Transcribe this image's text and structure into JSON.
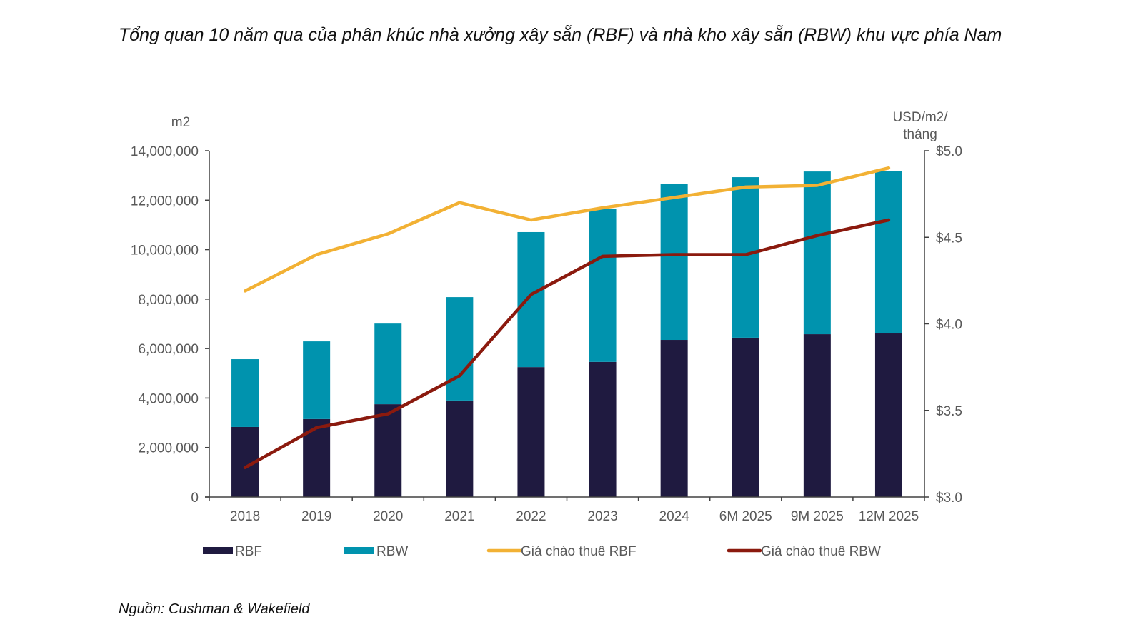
{
  "title": "Tổng quan 10 năm qua của phân khúc nhà xưởng xây sẵn (RBF) và nhà kho xây sẵn (RBW) khu vực phía Nam",
  "source": "Nguồn: Cushman & Wakefield",
  "colors": {
    "rbf": "#1f1a40",
    "rbw": "#0093ae",
    "rbf_price": "#f2b134",
    "rbw_price": "#8b1a0e",
    "axis": "#404040",
    "tick_text": "#595959"
  },
  "chart_data": {
    "type": "bar",
    "subtype": "stacked-bar-with-lines-dual-axis",
    "title": "Tổng quan 10 năm qua của phân khúc nhà xưởng xây sẵn (RBF) và nhà kho xây sẵn (RBW) khu vực phía Nam",
    "categories": [
      "2018",
      "2019",
      "2020",
      "2021",
      "2022",
      "2023",
      "2024",
      "6M 2025",
      "9M 2025",
      "12M 2025"
    ],
    "y_left": {
      "label": "m2",
      "range": [
        0,
        14000000
      ],
      "ticks": [
        0,
        2000000,
        4000000,
        6000000,
        8000000,
        10000000,
        12000000,
        14000000
      ],
      "tick_labels": [
        "0",
        "2,000,000",
        "4,000,000",
        "6,000,000",
        "8,000,000",
        "10,000,000",
        "12,000,000",
        "14,000,000"
      ]
    },
    "y_right": {
      "label_lines": [
        "USD/m2/",
        "tháng"
      ],
      "range": [
        3.0,
        5.0
      ],
      "ticks": [
        3.0,
        3.5,
        4.0,
        4.5,
        5.0
      ],
      "tick_labels": [
        "$3.0",
        "$3.5",
        "$4.0",
        "$4.5",
        "$5.0"
      ]
    },
    "series": [
      {
        "name": "RBF",
        "kind": "bar",
        "axis": "left",
        "color_key": "rbf",
        "values": [
          2830000,
          3150000,
          3750000,
          3900000,
          5250000,
          5460000,
          6350000,
          6440000,
          6580000,
          6610000
        ]
      },
      {
        "name": "RBW",
        "kind": "bar",
        "axis": "left",
        "color_key": "rbw",
        "values": [
          2740000,
          3140000,
          3260000,
          4180000,
          5460000,
          6200000,
          6320000,
          6490000,
          6580000,
          6580000
        ]
      },
      {
        "name": "Giá chào thuê RBF",
        "kind": "line",
        "axis": "right",
        "color_key": "rbf_price",
        "values": [
          4.19,
          4.4,
          4.52,
          4.7,
          4.6,
          4.67,
          4.73,
          4.79,
          4.8,
          4.9
        ]
      },
      {
        "name": "Giá chào thuê RBW",
        "kind": "line",
        "axis": "right",
        "color_key": "rbw_price",
        "values": [
          3.17,
          3.4,
          3.48,
          3.7,
          4.17,
          4.39,
          4.4,
          4.4,
          4.51,
          4.6
        ]
      }
    ],
    "legend": {
      "position": "bottom",
      "entries": [
        "RBF",
        "RBW",
        "Giá chào thuê RBF",
        "Giá chào thuê RBW"
      ]
    },
    "grid": false
  }
}
